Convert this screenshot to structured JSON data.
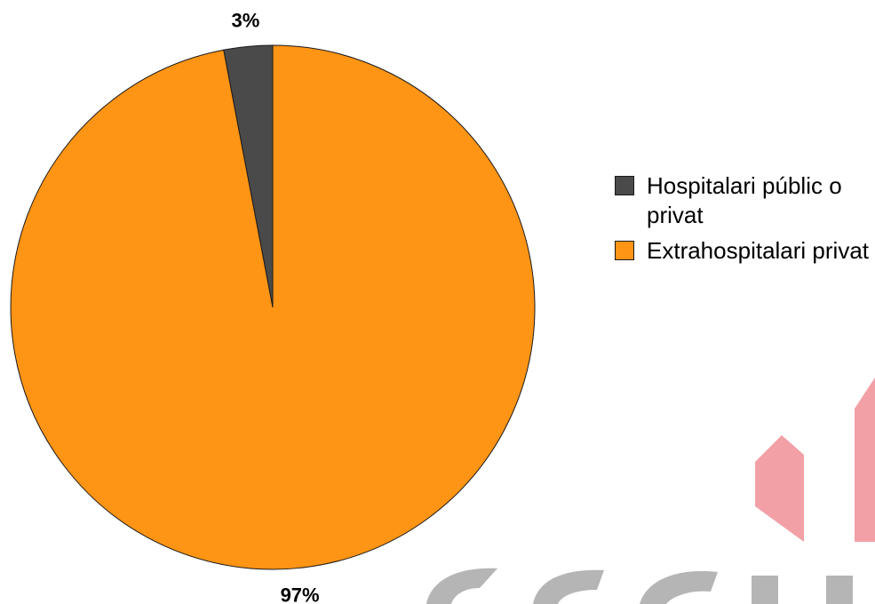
{
  "chart_data": {
    "type": "pie",
    "categories": [
      "Hospitalari públic o privat",
      "Extrahospitalari privat"
    ],
    "values": [
      3,
      97
    ],
    "data_labels": [
      "3%",
      "97%"
    ],
    "colors": [
      "#4a4a4a",
      "#ff9415"
    ],
    "legend": {
      "position": "right",
      "entries": [
        "Hospitalari públic o privat",
        "Extrahospitalari privat"
      ]
    },
    "start_angle": "12 o'clock",
    "direction": "counterclockwise"
  },
  "watermark": {
    "colors": [
      "#f2a0a6",
      "#b5b5b5"
    ]
  }
}
